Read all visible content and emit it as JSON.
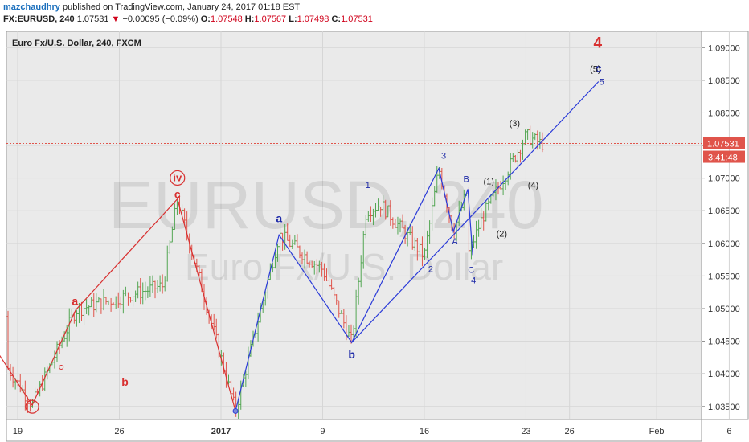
{
  "header": {
    "author": "mazchaudhry",
    "published_text": "published on TradingView.com, January 24, 2017 01:18 EST",
    "symbol": "FX:EURUSD, 240",
    "last": "1.07531",
    "change": "−0.00095 (−0.09%)",
    "o_label": "O:",
    "o_value": "1.07548",
    "h_label": "H:",
    "h_value": "1.07567",
    "l_label": "L:",
    "l_value": "1.07498",
    "c_label": "C:",
    "c_value": "1.07531"
  },
  "chart_data": {
    "type": "line",
    "title": "Euro Fx/U.S. Dollar, 240, FXCM",
    "watermark_symbol": "EURUSD, 240",
    "watermark_name": "Euro Fx/U.S. Dollar",
    "ylim": [
      1.033,
      1.0925
    ],
    "y_ticks": [
      "1.09000",
      "1.08500",
      "1.08000",
      "1.07500",
      "1.07000",
      "1.06500",
      "1.06000",
      "1.05500",
      "1.05000",
      "1.04500",
      "1.04000",
      "1.03500"
    ],
    "x_ticks": [
      "19",
      "26",
      "2017",
      "9",
      "16",
      "23",
      "26",
      "Feb",
      "6"
    ],
    "current_price_label": "1.07531",
    "current_price": 1.07531,
    "countdown_label": "3:41:48",
    "grid": true,
    "colors": {
      "bull": "#53a653",
      "bear": "#e0544b",
      "red_wave": "#d83030",
      "blue_wave": "#2b3bd8",
      "price_line": "#e0544b"
    },
    "wave_red": [
      {
        "x": "Dec 16",
        "y": 1.0488
      },
      {
        "x": "Dec 20",
        "y": 1.0352
      },
      {
        "x": "Dec 23",
        "y": 1.0498
      },
      {
        "x": "Dec 30",
        "y": 1.0668
      },
      {
        "x": "Jan 03",
        "y": 1.0343
      }
    ],
    "wave_blue": [
      {
        "x": "Jan 03",
        "y": 1.0343
      },
      {
        "x": "Jan 06",
        "y": 1.0613
      },
      {
        "x": "Jan 11",
        "y": 1.0448
      },
      {
        "x": "Jan 17",
        "y": 1.0715
      },
      {
        "x": "Jan 18",
        "y": 1.0618
      },
      {
        "x": "Jan 19",
        "y": 1.0683
      },
      {
        "x": "Jan 19",
        "y": 1.0582
      }
    ],
    "trendline": [
      {
        "x": "Jan 11",
        "y": 1.0448
      },
      {
        "x": "Jan 28",
        "y": 1.0848
      }
    ],
    "labels": [
      {
        "text": "a",
        "color": "red"
      },
      {
        "text": "b",
        "color": "red"
      },
      {
        "text": "c",
        "color": "red"
      },
      {
        "text": "iv",
        "color": "red"
      },
      {
        "text": "a",
        "color": "blue"
      },
      {
        "text": "b",
        "color": "blue"
      },
      {
        "text": "1",
        "color": "blue"
      },
      {
        "text": "2",
        "color": "blue"
      },
      {
        "text": "3",
        "color": "blue"
      },
      {
        "text": "A",
        "color": "blue"
      },
      {
        "text": "B",
        "color": "blue"
      },
      {
        "text": "C",
        "color": "blue"
      },
      {
        "text": "4",
        "color": "blue"
      },
      {
        "text": "5",
        "color": "blue"
      },
      {
        "text": "c",
        "color": "blue"
      },
      {
        "text": "(1)",
        "color": "black"
      },
      {
        "text": "(2)",
        "color": "black"
      },
      {
        "text": "(3)",
        "color": "black"
      },
      {
        "text": "(4)",
        "color": "black"
      },
      {
        "text": "(5)",
        "color": "black"
      },
      {
        "text": "4",
        "color": "red"
      }
    ]
  }
}
